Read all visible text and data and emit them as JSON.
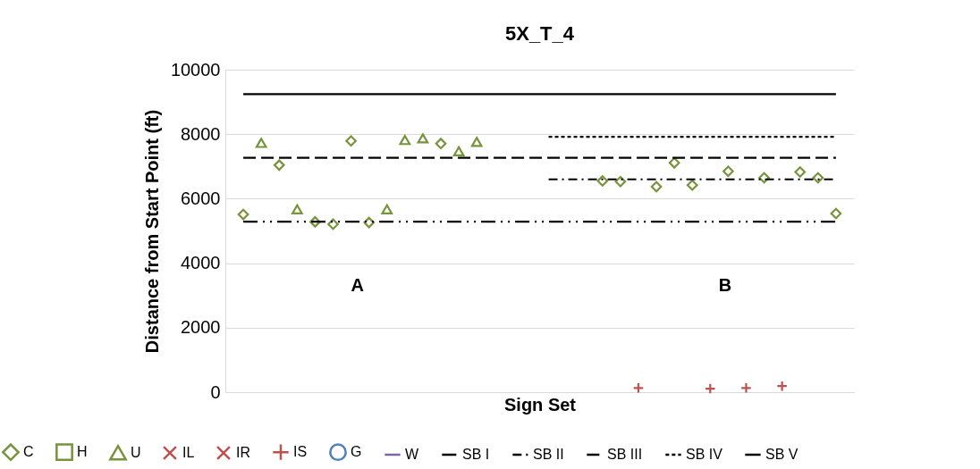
{
  "chart_data": {
    "type": "scatter",
    "title": "5X_T_4",
    "xlabel": "Sign Set",
    "ylabel": "Distance from Start Point (ft)",
    "categories": [
      null,
      null,
      null,
      null,
      null,
      null,
      null,
      null,
      null,
      null,
      null,
      null,
      null,
      null,
      null,
      null,
      null,
      null,
      null,
      null,
      null,
      null,
      null,
      null,
      null,
      null,
      null,
      null,
      null,
      null,
      null,
      null,
      null,
      null
    ],
    "ylim": [
      0,
      10000
    ],
    "yticks": [
      0,
      {
        "value": 2000,
        "label": "2000"
      },
      {
        "value": 4000,
        "label": "4000"
      },
      {
        "value": 6000,
        "label": "6000"
      },
      {
        "value": 8000,
        "label": "8000"
      },
      {
        "value": 10000,
        "label": "10000"
      }
    ],
    "grid": "y",
    "legend": "bottom",
    "annotations": [
      "A",
      "B"
    ],
    "series": [
      {
        "name": "C",
        "marker": "diamond",
        "color": "#77933c",
        "values": [
          5510,
          null,
          7040,
          null,
          5280,
          5210,
          7790,
          5260,
          null,
          null,
          null,
          7710,
          null,
          null,
          null,
          null,
          null,
          null,
          null,
          null,
          6550,
          6530,
          null,
          6370,
          7110,
          6420,
          null,
          6850,
          null,
          6650,
          null,
          6830,
          6650,
          5540
        ]
      },
      {
        "name": "H",
        "marker": "square",
        "color": "#77933c",
        "values": [
          null,
          null,
          null,
          null,
          null,
          null,
          null,
          null,
          null,
          null,
          null,
          null,
          null,
          null,
          null,
          null,
          null,
          null,
          null,
          null,
          null,
          null,
          null,
          null,
          null,
          null,
          null,
          null,
          null,
          null,
          null,
          null,
          null,
          null
        ]
      },
      {
        "name": "U",
        "marker": "triangle",
        "color": "#77933c",
        "values": [
          null,
          7730,
          null,
          5670,
          null,
          null,
          null,
          null,
          5670,
          7820,
          7870,
          null,
          7470,
          7760,
          null,
          null,
          null,
          null,
          null,
          null,
          null,
          null,
          null,
          null,
          null,
          null,
          null,
          null,
          null,
          null,
          null,
          null,
          null,
          null
        ]
      },
      {
        "name": "IL",
        "marker": "x",
        "color": "#c0504d",
        "values": [
          null,
          null,
          null,
          null,
          null,
          null,
          null,
          null,
          null,
          null,
          null,
          null,
          null,
          null,
          null,
          null,
          null,
          null,
          null,
          null,
          null,
          null,
          null,
          null,
          null,
          null,
          null,
          null,
          null,
          null,
          null,
          null,
          null,
          null
        ]
      },
      {
        "name": "IR",
        "marker": "x",
        "color": "#c0504d",
        "values": [
          null,
          null,
          null,
          null,
          null,
          null,
          null,
          null,
          null,
          null,
          null,
          null,
          null,
          null,
          null,
          null,
          null,
          null,
          null,
          null,
          null,
          null,
          null,
          null,
          null,
          null,
          null,
          null,
          null,
          null,
          null,
          null,
          null,
          null
        ]
      },
      {
        "name": "IS",
        "marker": "cross",
        "color": "#c0504d",
        "values": [
          null,
          null,
          null,
          null,
          null,
          null,
          null,
          null,
          null,
          null,
          null,
          null,
          null,
          null,
          null,
          null,
          null,
          null,
          null,
          null,
          null,
          null,
          130,
          null,
          null,
          null,
          110,
          null,
          130,
          null,
          190,
          null,
          null,
          null
        ]
      },
      {
        "name": "G",
        "marker": "circle",
        "color": "#4f81bd",
        "values": [
          null,
          null,
          null,
          null,
          null,
          null,
          null,
          null,
          null,
          null,
          null,
          null,
          null,
          null,
          null,
          null,
          null,
          null,
          null,
          null,
          null,
          null,
          null,
          null,
          null,
          null,
          null,
          null,
          null,
          null,
          null,
          null,
          null,
          null
        ]
      },
      {
        "name": "W",
        "type": "line",
        "line_style": "solid",
        "color": "#8064a2",
        "values": [
          null,
          null,
          null,
          null,
          null,
          null,
          null,
          null,
          null,
          null,
          null,
          null,
          null,
          null,
          null,
          null,
          null,
          null,
          null,
          null,
          null,
          null,
          null,
          null,
          null,
          null,
          null,
          null,
          null,
          null,
          null,
          null,
          null,
          null
        ]
      },
      {
        "name": "SB I",
        "type": "line",
        "line_style": "dashdotdot",
        "color": "#000000",
        "values": [
          5290,
          5290,
          5290,
          5290,
          5290,
          5290,
          5290,
          5290,
          5290,
          5290,
          5290,
          5290,
          5290,
          5290,
          5290,
          5290,
          5290,
          5290,
          5290,
          5290,
          5290,
          5290,
          5290,
          5290,
          5290,
          5290,
          5290,
          5290,
          5290,
          5290,
          5290,
          5290,
          5290,
          5290
        ]
      },
      {
        "name": "SB II",
        "type": "line",
        "line_style": "dashdot",
        "color": "#000000",
        "values": [
          null,
          null,
          null,
          null,
          null,
          null,
          null,
          null,
          null,
          null,
          null,
          null,
          null,
          null,
          null,
          null,
          null,
          6600,
          6600,
          6600,
          6600,
          6600,
          6600,
          6600,
          6600,
          6600,
          6600,
          6600,
          6600,
          6600,
          6600,
          6600,
          6600,
          6600
        ]
      },
      {
        "name": "SB III",
        "type": "line",
        "line_style": "dashed",
        "color": "#000000",
        "values": [
          7270,
          7270,
          7270,
          7270,
          7270,
          7270,
          7270,
          7270,
          7270,
          7270,
          7270,
          7270,
          7270,
          7270,
          7270,
          7270,
          7270,
          7270,
          7270,
          7270,
          7270,
          7270,
          7270,
          7270,
          7270,
          7270,
          7270,
          7270,
          7270,
          7270,
          7270,
          7270,
          7270,
          7270
        ]
      },
      {
        "name": "SB IV",
        "type": "line",
        "line_style": "dotted",
        "color": "#000000",
        "values": [
          null,
          null,
          null,
          null,
          null,
          null,
          null,
          null,
          null,
          null,
          null,
          null,
          null,
          null,
          null,
          null,
          null,
          7920,
          7920,
          7920,
          7920,
          7920,
          7920,
          7920,
          7920,
          7920,
          7920,
          7920,
          7920,
          7920,
          7920,
          7920,
          7920,
          7920
        ]
      },
      {
        "name": "SB V",
        "type": "line",
        "line_style": "solid",
        "color": "#000000",
        "values": [
          9240,
          9240,
          9240,
          9240,
          9240,
          9240,
          9240,
          9240,
          9240,
          9240,
          9240,
          9240,
          9240,
          9240,
          9240,
          9240,
          9240,
          9240,
          9240,
          9240,
          9240,
          9240,
          9240,
          9240,
          9240,
          9240,
          9240,
          9240,
          9240,
          9240,
          9240,
          9240,
          9240,
          9240
        ]
      }
    ]
  }
}
